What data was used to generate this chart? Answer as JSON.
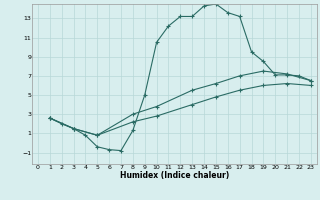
{
  "xlabel": "Humidex (Indice chaleur)",
  "background_color": "#d8eeee",
  "grid_color": "#b8d8d8",
  "line_color": "#2a6b64",
  "xlim": [
    -0.5,
    23.5
  ],
  "ylim": [
    -2.2,
    14.5
  ],
  "yticks": [
    -1,
    1,
    3,
    5,
    7,
    9,
    11,
    13
  ],
  "xticks": [
    0,
    1,
    2,
    3,
    4,
    5,
    6,
    7,
    8,
    9,
    10,
    11,
    12,
    13,
    14,
    15,
    16,
    17,
    18,
    19,
    20,
    21,
    22,
    23
  ],
  "line1_x": [
    1,
    2,
    3,
    4,
    5,
    6,
    7,
    8,
    9,
    10,
    11,
    12,
    13,
    14,
    15,
    16,
    17,
    18,
    19,
    20,
    21,
    22,
    23
  ],
  "line1_y": [
    2.6,
    2.0,
    1.5,
    0.8,
    -0.4,
    -0.7,
    -0.8,
    1.3,
    5.0,
    10.5,
    12.2,
    13.2,
    13.2,
    14.3,
    14.5,
    13.6,
    13.2,
    9.5,
    8.5,
    7.1,
    7.1,
    7.0,
    6.5
  ],
  "line2_x": [
    1,
    3,
    5,
    8,
    10,
    13,
    15,
    17,
    19,
    21,
    23
  ],
  "line2_y": [
    2.6,
    1.5,
    0.8,
    3.0,
    3.8,
    5.5,
    6.2,
    7.0,
    7.5,
    7.2,
    6.5
  ],
  "line3_x": [
    1,
    3,
    5,
    8,
    10,
    13,
    15,
    17,
    19,
    21,
    23
  ],
  "line3_y": [
    2.6,
    1.5,
    0.8,
    2.2,
    2.8,
    4.0,
    4.8,
    5.5,
    6.0,
    6.2,
    6.0
  ]
}
